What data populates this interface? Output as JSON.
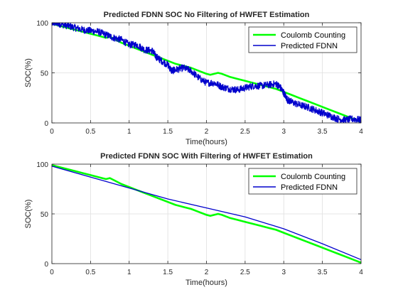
{
  "figure": {
    "background": "#ffffff"
  },
  "chart_data": [
    {
      "type": "line",
      "title": "Predicted FDNN SOC No Filtering of HWFET Estimation",
      "xlabel": "Time(hours)",
      "ylabel": "SOC(%)",
      "xlim": [
        0,
        4
      ],
      "ylim": [
        0,
        100
      ],
      "xticks": [
        "0",
        "0.5",
        "1",
        "1.5",
        "2",
        "2.5",
        "3",
        "3.5",
        "4"
      ],
      "yticks": [
        "0",
        "50",
        "100"
      ],
      "grid": true,
      "legend_position": "top-right",
      "series": [
        {
          "name": "Coulomb Counting",
          "color": "#00ff00",
          "noisy": false,
          "x": [
            0,
            0.1,
            0.2,
            0.3,
            0.4,
            0.5,
            0.6,
            0.7,
            0.75,
            0.8,
            0.9,
            1.0,
            1.1,
            1.2,
            1.3,
            1.4,
            1.5,
            1.6,
            1.7,
            1.8,
            1.9,
            2.0,
            2.05,
            2.1,
            2.15,
            2.2,
            2.3,
            2.4,
            2.5,
            2.6,
            2.7,
            2.8,
            2.9,
            3.0,
            3.1,
            3.2,
            3.3,
            3.4,
            3.5,
            3.6,
            3.7,
            3.8,
            3.9,
            4.0
          ],
          "values": [
            99,
            97,
            95,
            93,
            91,
            89,
            87,
            85,
            86,
            84,
            80,
            77,
            74,
            71,
            68,
            65,
            62,
            59,
            57,
            55,
            52,
            49,
            48,
            49,
            50,
            49,
            46,
            44,
            42,
            40,
            38,
            36,
            34,
            31,
            28,
            25,
            22,
            19,
            16,
            13,
            10,
            7,
            4,
            1
          ]
        },
        {
          "name": "Predicted FDNN",
          "color": "#0000cc",
          "noisy": true,
          "x": [
            0,
            0.05,
            0.1,
            0.2,
            0.3,
            0.4,
            0.5,
            0.6,
            0.7,
            0.8,
            0.9,
            1.0,
            1.1,
            1.2,
            1.3,
            1.35,
            1.4,
            1.5,
            1.55,
            1.6,
            1.7,
            1.8,
            1.9,
            2.0,
            2.1,
            2.2,
            2.3,
            2.4,
            2.5,
            2.6,
            2.7,
            2.8,
            2.9,
            2.95,
            3.0,
            3.05,
            3.1,
            3.2,
            3.3,
            3.4,
            3.5,
            3.6,
            3.7,
            3.8,
            3.9,
            4.0
          ],
          "values": [
            100,
            100,
            99,
            97,
            95,
            93,
            92,
            91,
            88,
            85,
            83,
            78,
            78,
            73,
            72,
            66,
            63,
            58,
            52,
            53,
            55,
            52,
            45,
            40,
            40,
            36,
            34,
            33,
            35,
            37,
            37,
            38,
            39,
            36,
            30,
            23,
            21,
            18,
            16,
            13,
            10,
            7,
            4,
            3,
            4,
            3
          ]
        }
      ]
    },
    {
      "type": "line",
      "title": "Predicted FDNN SOC With Filtering of HWFET Estimation",
      "xlabel": "Time(hours)",
      "ylabel": "SOC(%)",
      "xlim": [
        0,
        4
      ],
      "ylim": [
        0,
        100
      ],
      "xticks": [
        "0",
        "0.5",
        "1",
        "1.5",
        "2",
        "2.5",
        "3",
        "3.5",
        "4"
      ],
      "yticks": [
        "0",
        "50",
        "100"
      ],
      "grid": true,
      "legend_position": "top-right",
      "series": [
        {
          "name": "Coulomb Counting",
          "color": "#00ff00",
          "noisy": false,
          "x": [
            0,
            0.1,
            0.2,
            0.3,
            0.4,
            0.5,
            0.6,
            0.7,
            0.75,
            0.8,
            0.9,
            1.0,
            1.1,
            1.2,
            1.3,
            1.4,
            1.5,
            1.6,
            1.7,
            1.8,
            1.9,
            2.0,
            2.05,
            2.1,
            2.15,
            2.2,
            2.3,
            2.4,
            2.5,
            2.6,
            2.7,
            2.8,
            2.9,
            3.0,
            3.1,
            3.2,
            3.3,
            3.4,
            3.5,
            3.6,
            3.7,
            3.8,
            3.9,
            4.0
          ],
          "values": [
            99,
            97,
            95,
            93,
            91,
            89,
            87,
            85,
            86,
            84,
            80,
            77,
            74,
            71,
            68,
            65,
            62,
            59,
            57,
            55,
            52,
            49,
            48,
            49,
            50,
            49,
            46,
            44,
            42,
            40,
            38,
            36,
            34,
            31,
            28,
            25,
            22,
            19,
            16,
            13,
            10,
            7,
            4,
            1
          ]
        },
        {
          "name": "Predicted FDNN",
          "color": "#0000cc",
          "noisy": false,
          "x": [
            0,
            0.5,
            1.0,
            1.5,
            2.0,
            2.5,
            3.0,
            3.5,
            4.0
          ],
          "values": [
            98,
            87,
            76,
            65,
            56,
            47,
            35,
            20,
            4
          ]
        }
      ]
    }
  ]
}
